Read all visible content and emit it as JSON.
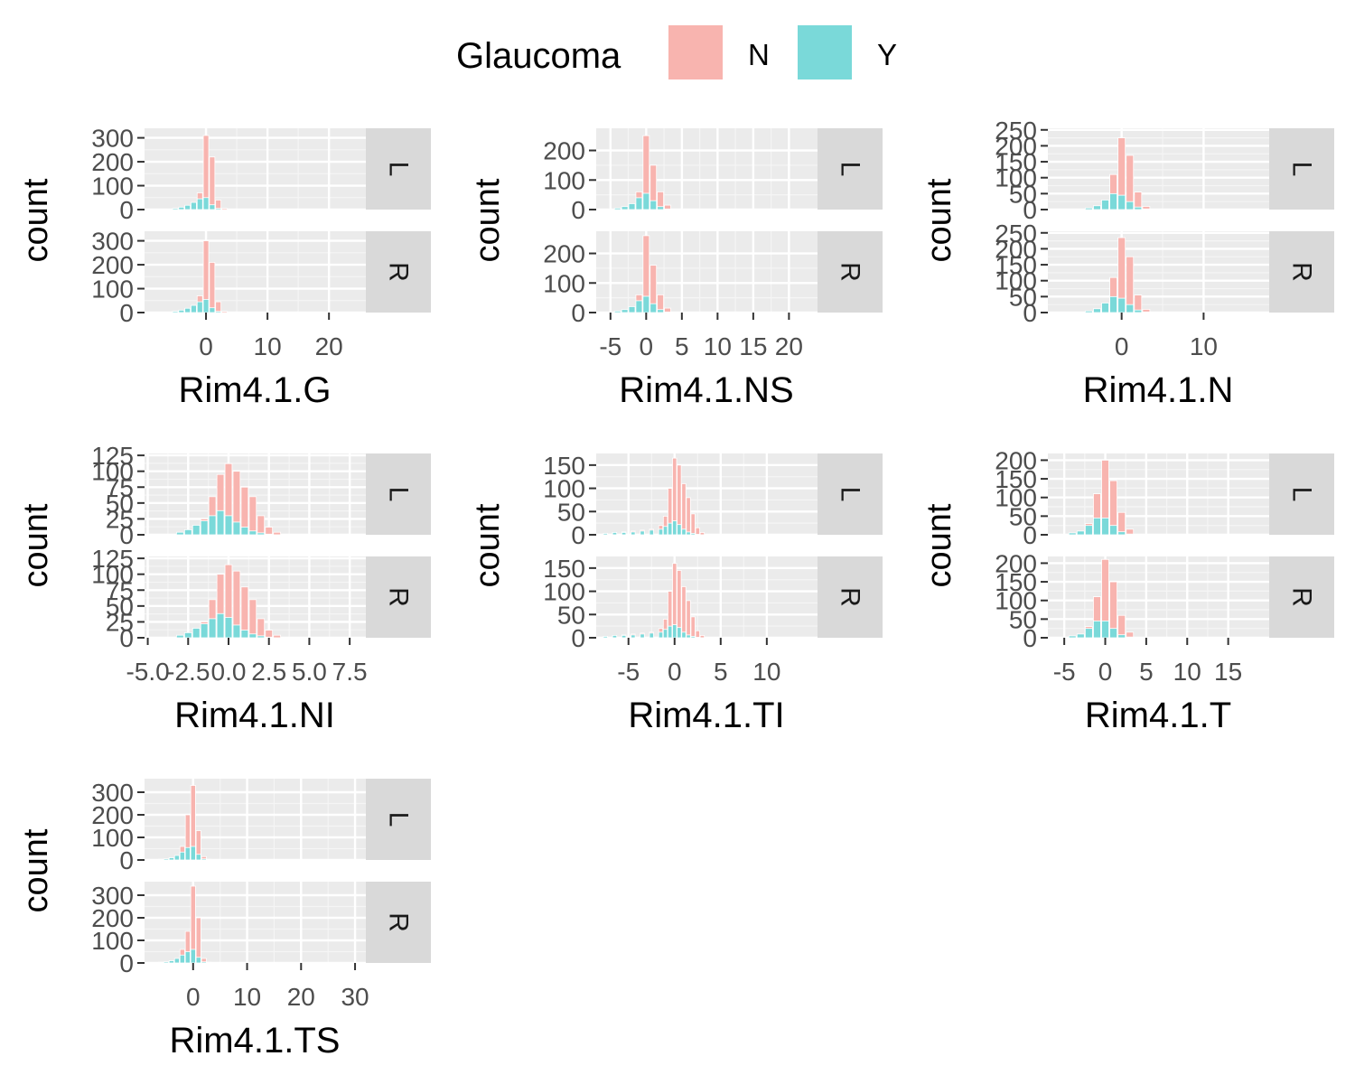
{
  "legend": {
    "title": "Glaucoma",
    "items": [
      {
        "label": "N",
        "color": "#F8B4AF"
      },
      {
        "label": "Y",
        "color": "#7AD9D9"
      }
    ]
  },
  "strips": [
    "L",
    "R"
  ],
  "y_label": "count",
  "chart_data": [
    {
      "type": "bar",
      "title": "",
      "xlabel": "Rim4.1.G",
      "ylabel": "count",
      "xlim": [
        -10,
        26
      ],
      "ylim": [
        0,
        340
      ],
      "xticks": [
        0,
        10,
        20
      ],
      "yticks": [
        0,
        100,
        200,
        300
      ],
      "x": [
        -6,
        -5,
        -4,
        -3,
        -2,
        -1,
        0,
        1,
        2,
        3
      ],
      "facets": [
        {
          "strip": "L",
          "series": [
            {
              "name": "N",
              "values": [
                0,
                2,
                4,
                8,
                20,
                70,
                310,
                220,
                40,
                5
              ]
            },
            {
              "name": "Y",
              "values": [
                2,
                5,
                10,
                18,
                30,
                45,
                50,
                20,
                5,
                0
              ]
            }
          ]
        },
        {
          "strip": "R",
          "series": [
            {
              "name": "N",
              "values": [
                0,
                2,
                4,
                8,
                20,
                70,
                300,
                210,
                45,
                5
              ]
            },
            {
              "name": "Y",
              "values": [
                2,
                5,
                10,
                18,
                30,
                45,
                55,
                20,
                5,
                0
              ]
            }
          ]
        }
      ]
    },
    {
      "type": "bar",
      "title": "",
      "xlabel": "Rim4.1.NS",
      "ylabel": "count",
      "xlim": [
        -7,
        24
      ],
      "ylim": [
        0,
        275
      ],
      "xticks": [
        -5,
        0,
        5,
        10,
        15,
        20
      ],
      "yticks": [
        0,
        100,
        200
      ],
      "x": [
        -4,
        -3,
        -2,
        -1,
        0,
        1,
        2,
        3
      ],
      "facets": [
        {
          "strip": "L",
          "series": [
            {
              "name": "N",
              "values": [
                2,
                5,
                15,
                60,
                250,
                150,
                60,
                15
              ]
            },
            {
              "name": "Y",
              "values": [
                5,
                10,
                20,
                40,
                55,
                30,
                10,
                2
              ]
            }
          ]
        },
        {
          "strip": "R",
          "series": [
            {
              "name": "N",
              "values": [
                2,
                5,
                15,
                60,
                260,
                160,
                60,
                15
              ]
            },
            {
              "name": "Y",
              "values": [
                5,
                10,
                20,
                40,
                55,
                30,
                10,
                2
              ]
            }
          ]
        }
      ]
    },
    {
      "type": "bar",
      "title": "",
      "xlabel": "Rim4.1.N",
      "ylabel": "count",
      "xlim": [
        -9,
        18
      ],
      "ylim": [
        0,
        255
      ],
      "xticks": [
        0,
        10
      ],
      "yticks": [
        0,
        50,
        100,
        150,
        200,
        250
      ],
      "x": [
        -4,
        -3,
        -2,
        -1,
        0,
        1,
        2,
        3
      ],
      "facets": [
        {
          "strip": "L",
          "series": [
            {
              "name": "N",
              "values": [
                3,
                8,
                20,
                110,
                225,
                170,
                55,
                10
              ]
            },
            {
              "name": "Y",
              "values": [
                5,
                12,
                30,
                50,
                45,
                25,
                8,
                2
              ]
            }
          ]
        },
        {
          "strip": "R",
          "series": [
            {
              "name": "N",
              "values": [
                3,
                8,
                20,
                110,
                235,
                175,
                55,
                10
              ]
            },
            {
              "name": "Y",
              "values": [
                5,
                12,
                30,
                50,
                45,
                25,
                8,
                2
              ]
            }
          ]
        }
      ]
    },
    {
      "type": "bar",
      "title": "",
      "xlabel": "Rim4.1.NI",
      "ylabel": "count",
      "xlim": [
        -5.2,
        8.5
      ],
      "ylim": [
        0,
        128
      ],
      "xticks": [
        -5.0,
        -2.5,
        0.0,
        2.5,
        5.0,
        7.5
      ],
      "yticks": [
        0,
        25,
        50,
        75,
        100,
        125
      ],
      "x": [
        -3.0,
        -2.5,
        -2.0,
        -1.5,
        -1.0,
        -0.5,
        0.0,
        0.5,
        1.0,
        1.5,
        2.0,
        2.5,
        3.0
      ],
      "facets": [
        {
          "strip": "L",
          "series": [
            {
              "name": "N",
              "values": [
                2,
                5,
                10,
                25,
                60,
                95,
                112,
                100,
                75,
                60,
                30,
                12,
                4
              ]
            },
            {
              "name": "Y",
              "values": [
                4,
                8,
                15,
                22,
                30,
                38,
                30,
                20,
                12,
                6,
                3,
                1,
                0
              ]
            }
          ]
        },
        {
          "strip": "R",
          "series": [
            {
              "name": "N",
              "values": [
                2,
                5,
                10,
                25,
                60,
                100,
                115,
                105,
                80,
                60,
                30,
                12,
                4
              ]
            },
            {
              "name": "Y",
              "values": [
                4,
                8,
                15,
                22,
                30,
                38,
                32,
                20,
                12,
                6,
                3,
                1,
                0
              ]
            }
          ]
        }
      ]
    },
    {
      "type": "bar",
      "title": "",
      "xlabel": "Rim4.1.TI",
      "ylabel": "count",
      "xlim": [
        -8.5,
        15.5
      ],
      "ylim": [
        0,
        175
      ],
      "xticks": [
        -5,
        0,
        5,
        10
      ],
      "yticks": [
        0,
        50,
        100,
        150
      ],
      "x": [
        -7.5,
        -6.5,
        -5.5,
        -4.5,
        -3.5,
        -2.5,
        -1.5,
        -1,
        -0.5,
        0,
        0.5,
        1,
        1.5,
        2,
        2.5,
        3
      ],
      "facets": [
        {
          "strip": "L",
          "series": [
            {
              "name": "N",
              "values": [
                3,
                5,
                6,
                8,
                10,
                12,
                20,
                40,
                100,
                165,
                150,
                110,
                80,
                45,
                15,
                5
              ]
            },
            {
              "name": "Y",
              "values": [
                3,
                5,
                5,
                6,
                8,
                10,
                12,
                18,
                25,
                30,
                22,
                12,
                6,
                3,
                1,
                0
              ]
            }
          ]
        },
        {
          "strip": "R",
          "series": [
            {
              "name": "N",
              "values": [
                3,
                5,
                6,
                8,
                10,
                12,
                20,
                40,
                100,
                160,
                145,
                110,
                80,
                45,
                15,
                5
              ]
            },
            {
              "name": "Y",
              "values": [
                3,
                5,
                5,
                6,
                8,
                10,
                12,
                18,
                25,
                28,
                22,
                12,
                6,
                3,
                1,
                0
              ]
            }
          ]
        }
      ]
    },
    {
      "type": "bar",
      "title": "",
      "xlabel": "Rim4.1.T",
      "ylabel": "count",
      "xlim": [
        -7,
        20
      ],
      "ylim": [
        0,
        218
      ],
      "xticks": [
        -5,
        0,
        5,
        10,
        15
      ],
      "yticks": [
        0,
        50,
        100,
        150,
        200
      ],
      "x": [
        -4,
        -3,
        -2,
        -1,
        0,
        1,
        2,
        3
      ],
      "facets": [
        {
          "strip": "L",
          "series": [
            {
              "name": "N",
              "values": [
                3,
                8,
                30,
                110,
                200,
                145,
                60,
                15
              ]
            },
            {
              "name": "Y",
              "values": [
                5,
                10,
                25,
                45,
                45,
                25,
                8,
                2
              ]
            }
          ]
        },
        {
          "strip": "R",
          "series": [
            {
              "name": "N",
              "values": [
                3,
                8,
                30,
                110,
                210,
                150,
                60,
                15
              ]
            },
            {
              "name": "Y",
              "values": [
                5,
                10,
                25,
                45,
                45,
                25,
                8,
                2
              ]
            }
          ]
        }
      ]
    },
    {
      "type": "bar",
      "title": "",
      "xlabel": "Rim4.1.TS",
      "ylabel": "count",
      "xlim": [
        -9,
        32
      ],
      "ylim": [
        0,
        360
      ],
      "xticks": [
        0,
        10,
        20,
        30
      ],
      "yticks": [
        0,
        100,
        200,
        300
      ],
      "x": [
        -6,
        -5,
        -4,
        -3,
        -2,
        -1,
        0,
        1,
        2,
        3
      ],
      "facets": [
        {
          "strip": "L",
          "series": [
            {
              "name": "N",
              "values": [
                0,
                2,
                5,
                10,
                60,
                200,
                330,
                130,
                15,
                3
              ]
            },
            {
              "name": "Y",
              "values": [
                3,
                5,
                10,
                20,
                35,
                55,
                60,
                25,
                5,
                0
              ]
            }
          ]
        },
        {
          "strip": "R",
          "series": [
            {
              "name": "N",
              "values": [
                0,
                2,
                5,
                10,
                60,
                140,
                340,
                200,
                20,
                3
              ]
            },
            {
              "name": "Y",
              "values": [
                3,
                5,
                10,
                20,
                35,
                50,
                60,
                25,
                5,
                0
              ]
            }
          ]
        }
      ]
    }
  ]
}
